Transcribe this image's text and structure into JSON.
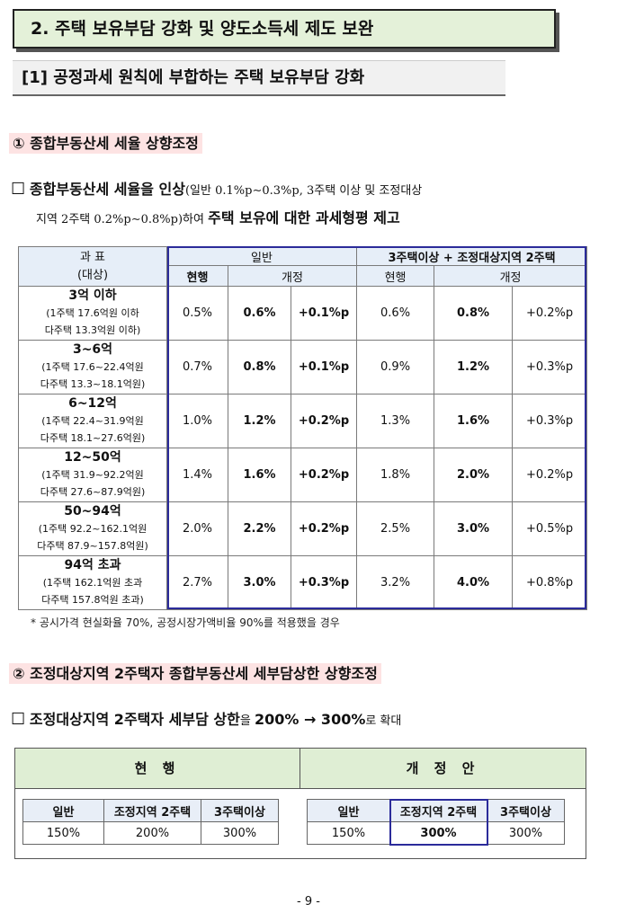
{
  "section_title": "2. 주택 보유부담 강화 및 양도소득세 제도 보완",
  "sub_title": "[1] 공정과세 원칙에 부합하는 주택 보유부담 강화",
  "item1": {
    "heading": "① 종합부동산세 세율 상향조정",
    "bullet": "☐",
    "para_bold1": "종합부동산세 세율을 인상",
    "para_text1": "(일반 0.1%p∼0.3%p, 3주택 이상 및 조정대상",
    "para_text2": "지역 2주택 0.2%p∼0.8%p)하여 ",
    "para_bold2": "주택 보유에 대한 과세형평 제고"
  },
  "table1": {
    "hdr_col0_line1": "과 표",
    "hdr_col0_line2": "(대상)",
    "group_general": "일반",
    "group_multi": "3주택이상 + 조정대상지역 2주택",
    "sub_current": "현행",
    "sub_revised": "개정",
    "rows": [
      {
        "bracket": "3억 이하",
        "l1": "(1주택 17.6억원 이하",
        "l2": "다주택 13.3억원 이하)",
        "g_cur": "0.5%",
        "g_new": "0.6%",
        "g_chg": "+0.1%p",
        "m_cur": "0.6%",
        "m_new": "0.8%",
        "m_chg": "+0.2%p"
      },
      {
        "bracket": "3~6억",
        "l1": "(1주택 17.6~22.4억원",
        "l2": "다주택 13.3~18.1억원)",
        "g_cur": "0.7%",
        "g_new": "0.8%",
        "g_chg": "+0.1%p",
        "m_cur": "0.9%",
        "m_new": "1.2%",
        "m_chg": "+0.3%p"
      },
      {
        "bracket": "6~12억",
        "l1": "(1주택 22.4~31.9억원",
        "l2": "다주택 18.1~27.6억원)",
        "g_cur": "1.0%",
        "g_new": "1.2%",
        "g_chg": "+0.2%p",
        "m_cur": "1.3%",
        "m_new": "1.6%",
        "m_chg": "+0.3%p"
      },
      {
        "bracket": "12~50억",
        "l1": "(1주택 31.9~92.2억원",
        "l2": "다주택 27.6~87.9억원)",
        "g_cur": "1.4%",
        "g_new": "1.6%",
        "g_chg": "+0.2%p",
        "m_cur": "1.8%",
        "m_new": "2.0%",
        "m_chg": "+0.2%p"
      },
      {
        "bracket": "50~94억",
        "l1": "(1주택 92.2~162.1억원",
        "l2": "다주택 87.9~157.8억원)",
        "g_cur": "2.0%",
        "g_new": "2.2%",
        "g_chg": "+0.2%p",
        "m_cur": "2.5%",
        "m_new": "3.0%",
        "m_chg": "+0.5%p"
      },
      {
        "bracket": "94억 초과",
        "l1": "(1주택 162.1억원 초과",
        "l2": "다주택 157.8억원 초과)",
        "g_cur": "2.7%",
        "g_new": "3.0%",
        "g_chg": "+0.3%p",
        "m_cur": "3.2%",
        "m_new": "4.0%",
        "m_chg": "+0.8%p"
      }
    ],
    "note": "* 공시가격 현실화율 70%, 공정시장가액비율 90%를 적용했을 경우"
  },
  "item2": {
    "heading": "② 조정대상지역 2주택자 종합부동산세 세부담상한 상향조정",
    "bullet": "☐",
    "para_bold1": "조정대상지역 2주택자 세부담 상한",
    "para_text1": "을 ",
    "para_bold2": "200% → 300%",
    "para_text2": "로 확대"
  },
  "table2": {
    "current_title": "현 행",
    "revised_title": "개 정 안",
    "headers": [
      "일반",
      "조정지역 2주택",
      "3주택이상"
    ],
    "current_values": [
      "150%",
      "200%",
      "300%"
    ],
    "revised_values": [
      "150%",
      "300%",
      "300%"
    ]
  },
  "page_number": "- 9 -",
  "colors": {
    "section_fill": "#e4f1d9",
    "heading_highlight": "#fde3e3",
    "table_header": "#e6eef8",
    "frame_blue": "#2b2b9a"
  }
}
